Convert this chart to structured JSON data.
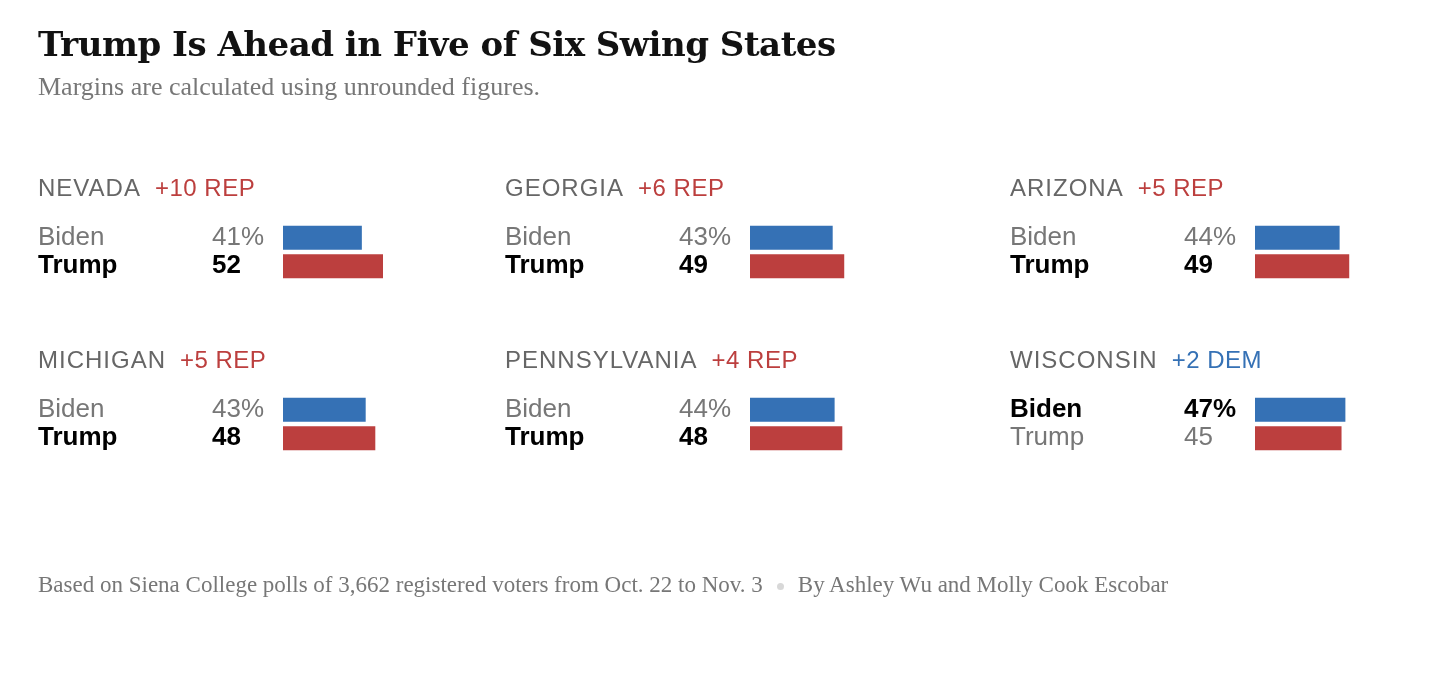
{
  "chart_data": [
    {
      "type": "other",
      "title": "Trump Is Ahead in Five of Six Swing States",
      "subtitle": "Margins are calculated using unrounded figures."
    },
    {
      "type": "bar",
      "orientation": "horizontal",
      "title": "NEVADA",
      "subtitle": "+10 REP",
      "categories": [
        "Biden",
        "Trump"
      ],
      "values": [
        41,
        52
      ],
      "colors": [
        "#3571b5",
        "#bc3f3e"
      ],
      "value_labels": [
        "41%",
        "52"
      ]
    },
    {
      "type": "bar",
      "orientation": "horizontal",
      "title": "GEORGIA",
      "subtitle": "+6 REP",
      "categories": [
        "Biden",
        "Trump"
      ],
      "values": [
        43,
        49
      ],
      "colors": [
        "#3571b5",
        "#bc3f3e"
      ],
      "value_labels": [
        "43%",
        "49"
      ]
    },
    {
      "type": "bar",
      "orientation": "horizontal",
      "title": "ARIZONA",
      "subtitle": "+5 REP",
      "categories": [
        "Biden",
        "Trump"
      ],
      "values": [
        44,
        49
      ],
      "colors": [
        "#3571b5",
        "#bc3f3e"
      ],
      "value_labels": [
        "44%",
        "49"
      ]
    },
    {
      "type": "bar",
      "orientation": "horizontal",
      "title": "MICHIGAN",
      "subtitle": "+5 REP",
      "categories": [
        "Biden",
        "Trump"
      ],
      "values": [
        43,
        48
      ],
      "colors": [
        "#3571b5",
        "#bc3f3e"
      ],
      "value_labels": [
        "43%",
        "48"
      ]
    },
    {
      "type": "bar",
      "orientation": "horizontal",
      "title": "PENNSYLVANIA",
      "subtitle": "+4 REP",
      "categories": [
        "Biden",
        "Trump"
      ],
      "values": [
        44,
        48
      ],
      "colors": [
        "#3571b5",
        "#bc3f3e"
      ],
      "value_labels": [
        "44%",
        "48"
      ]
    },
    {
      "type": "bar",
      "orientation": "horizontal",
      "title": "WISCONSIN",
      "subtitle": "+2 DEM",
      "categories": [
        "Biden",
        "Trump"
      ],
      "values": [
        47,
        45
      ],
      "colors": [
        "#3571b5",
        "#bc3f3e"
      ],
      "value_labels": [
        "47%",
        "45"
      ]
    },
    {
      "type": "other",
      "annotations": [
        "Based on Siena College polls of 3,662 registered voters from Oct. 22 to Nov. 3",
        "By Ashley Wu and Molly Cook Escobar"
      ]
    }
  ]
}
